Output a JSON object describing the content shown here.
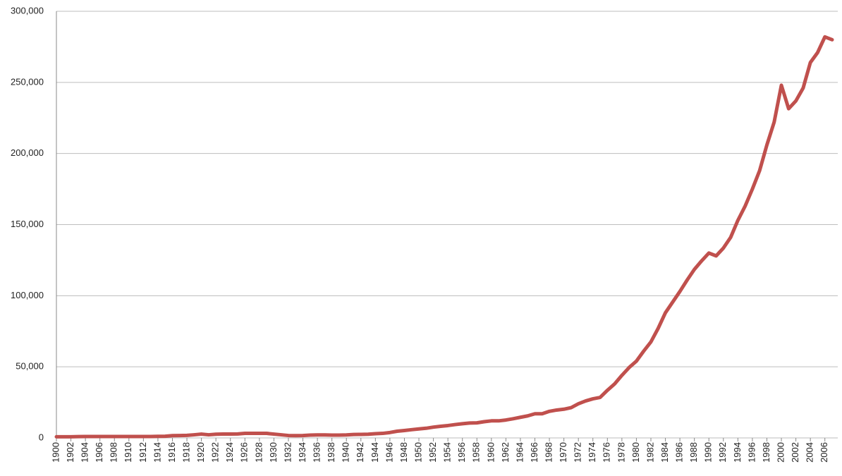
{
  "chart_data": {
    "type": "line",
    "x": [
      1900,
      1901,
      1902,
      1903,
      1904,
      1905,
      1906,
      1907,
      1908,
      1909,
      1910,
      1911,
      1912,
      1913,
      1914,
      1915,
      1916,
      1917,
      1918,
      1919,
      1920,
      1921,
      1922,
      1923,
      1924,
      1925,
      1926,
      1927,
      1928,
      1929,
      1930,
      1931,
      1932,
      1933,
      1934,
      1935,
      1936,
      1937,
      1938,
      1939,
      1940,
      1941,
      1942,
      1943,
      1944,
      1945,
      1946,
      1947,
      1948,
      1949,
      1950,
      1951,
      1952,
      1953,
      1954,
      1955,
      1956,
      1957,
      1958,
      1959,
      1960,
      1961,
      1962,
      1963,
      1964,
      1965,
      1966,
      1967,
      1968,
      1969,
      1970,
      1971,
      1972,
      1973,
      1974,
      1975,
      1976,
      1977,
      1978,
      1979,
      1980,
      1981,
      1982,
      1983,
      1984,
      1985,
      1986,
      1987,
      1988,
      1989,
      1990,
      1991,
      1992,
      1993,
      1994,
      1995,
      1996,
      1997,
      1998,
      1999,
      2000,
      2001,
      2002,
      2003,
      2004,
      2005,
      2006,
      2007
    ],
    "series": [
      {
        "color": "#c0504d",
        "values": [
          800,
          800,
          800,
          900,
          1000,
          1000,
          1000,
          1000,
          1000,
          1000,
          1000,
          1000,
          1000,
          1000,
          1100,
          1200,
          1600,
          1700,
          1800,
          2200,
          2700,
          2200,
          2600,
          2700,
          2700,
          2800,
          3200,
          3200,
          3200,
          3200,
          2700,
          2200,
          1700,
          1600,
          1700,
          2000,
          2100,
          2100,
          2000,
          2000,
          2100,
          2400,
          2500,
          2600,
          3000,
          3200,
          3800,
          4700,
          5200,
          5800,
          6300,
          6800,
          7600,
          8200,
          8700,
          9400,
          10000,
          10500,
          10600,
          11400,
          12000,
          12000,
          12600,
          13500,
          14500,
          15500,
          17000,
          17000,
          18700,
          19600,
          20200,
          21300,
          24000,
          26000,
          27500,
          28500,
          33500,
          38000,
          44000,
          49500,
          54000,
          61000,
          67500,
          77000,
          88000,
          95500,
          103000,
          111000,
          118500,
          124500,
          130000,
          128000,
          133500,
          141000,
          153000,
          163000,
          175000,
          188000,
          206000,
          222000,
          248000,
          231500,
          237000,
          246000,
          264000,
          271000,
          282000,
          280000
        ]
      }
    ],
    "xlim": [
      1900,
      2007
    ],
    "xticks": [
      1900,
      1902,
      1904,
      1906,
      1908,
      1910,
      1912,
      1914,
      1916,
      1918,
      1920,
      1922,
      1924,
      1926,
      1928,
      1930,
      1932,
      1934,
      1936,
      1938,
      1940,
      1942,
      1944,
      1946,
      1948,
      1950,
      1952,
      1954,
      1956,
      1958,
      1960,
      1962,
      1964,
      1966,
      1968,
      1970,
      1972,
      1974,
      1976,
      1978,
      1980,
      1982,
      1984,
      1986,
      1988,
      1990,
      1992,
      1994,
      1996,
      1998,
      2000,
      2002,
      2004,
      2006
    ],
    "ylim": [
      0,
      300000
    ],
    "yticks": [
      0,
      {
        "value": 50000,
        "label": "50,000"
      },
      {
        "value": 100000,
        "label": "100,000"
      },
      {
        "value": 150000,
        "label": "150,000"
      },
      {
        "value": 200000,
        "label": "200,000"
      },
      {
        "value": 250000,
        "label": "250,000"
      },
      {
        "value": 300000,
        "label": "300,000"
      }
    ],
    "grid": true
  }
}
